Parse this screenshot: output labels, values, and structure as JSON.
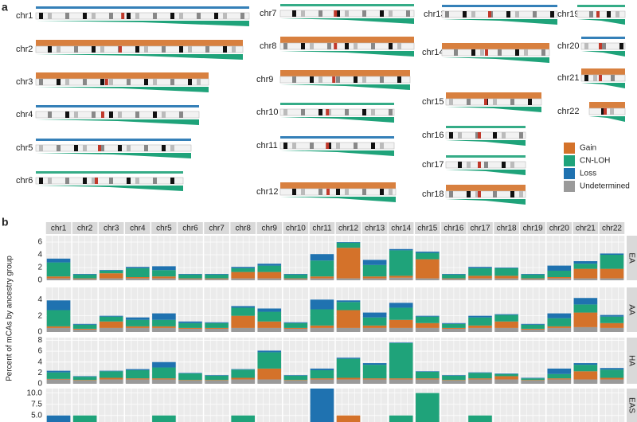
{
  "chart_data": {
    "type": "facet-area",
    "legend": [
      {
        "name": "Gain",
        "color": "#d4722a"
      },
      {
        "name": "CN-LOH",
        "color": "#1fa37a"
      },
      {
        "name": "Loss",
        "color": "#1f72b0"
      },
      {
        "name": "Undetermined",
        "color": "#9a9a9a"
      }
    ],
    "panel_a": {
      "label": "a",
      "chromosomes": [
        "chr1",
        "chr2",
        "chr3",
        "chr4",
        "chr5",
        "chr6",
        "chr7",
        "chr8",
        "chr9",
        "chr10",
        "chr11",
        "chr12",
        "chr13",
        "chr14",
        "chr15",
        "chr16",
        "chr17",
        "chr18",
        "chr19",
        "chr20",
        "chr21",
        "chr22"
      ]
    },
    "panel_b": {
      "label": "b",
      "ylabel": "Percent of mCAs by ancestry group",
      "columns": [
        "chr1",
        "chr2",
        "chr3",
        "chr4",
        "chr5",
        "chr6",
        "chr7",
        "chr8",
        "chr9",
        "chr10",
        "chr11",
        "chr12",
        "chr13",
        "chr14",
        "chr15",
        "chr16",
        "chr17",
        "chr18",
        "chr19",
        "chr20",
        "chr21",
        "chr22"
      ],
      "rows": [
        {
          "name": "EA",
          "ylim": [
            0,
            7
          ],
          "yticks": [
            0,
            2,
            4,
            6
          ],
          "stack": [
            [
              0.3,
              0.1,
              0.8,
              0.2,
              0.3,
              0.1,
              0.1,
              1.0,
              1.0,
              0.1,
              0.3,
              4.8,
              0.3,
              0.3,
              3.0,
              0.1,
              0.4,
              0.4,
              0.1,
              0.2,
              1.5,
              1.5
            ],
            [
              2.2,
              0.6,
              0.4,
              1.4,
              1.0,
              0.6,
              0.6,
              0.6,
              1.0,
              0.6,
              2.5,
              0.8,
              1.8,
              4.0,
              1.0,
              0.6,
              1.2,
              1.2,
              0.6,
              1.0,
              0.8,
              2.2
            ],
            [
              0.6,
              0.1,
              0.1,
              0.2,
              0.6,
              0.1,
              0.1,
              0.2,
              0.3,
              0.1,
              1.0,
              0.1,
              0.8,
              0.2,
              0.2,
              0.1,
              0.2,
              0.1,
              0.1,
              0.8,
              0.4,
              0.2
            ],
            [
              0.3,
              0.2,
              0.3,
              0.3,
              0.3,
              0.2,
              0.2,
              0.3,
              0.3,
              0.2,
              0.3,
              0.3,
              0.3,
              0.4,
              0.3,
              0.2,
              0.3,
              0.3,
              0.2,
              0.3,
              0.3,
              0.3
            ]
          ]
        },
        {
          "name": "AA",
          "ylim": [
            0,
            5.5
          ],
          "yticks": [
            0,
            2,
            4
          ],
          "stack": [
            [
              0.2,
              0.1,
              0.8,
              0.2,
              0.2,
              0.1,
              0.1,
              1.5,
              0.8,
              0.1,
              0.3,
              2.2,
              0.3,
              1.0,
              0.6,
              0.1,
              0.3,
              0.8,
              0.1,
              0.2,
              1.8,
              0.6
            ],
            [
              2.0,
              0.5,
              0.6,
              0.8,
              0.8,
              0.6,
              0.6,
              1.0,
              1.2,
              0.6,
              2.0,
              1.0,
              1.0,
              1.5,
              0.8,
              0.5,
              1.0,
              0.8,
              0.5,
              1.0,
              1.0,
              0.8
            ],
            [
              1.2,
              0.1,
              0.1,
              0.3,
              0.8,
              0.2,
              0.1,
              0.2,
              0.4,
              0.1,
              1.2,
              0.2,
              0.6,
              0.6,
              0.1,
              0.1,
              0.2,
              0.1,
              0.1,
              0.6,
              0.8,
              0.2
            ],
            [
              0.5,
              0.3,
              0.5,
              0.5,
              0.5,
              0.4,
              0.4,
              0.5,
              0.5,
              0.4,
              0.5,
              0.5,
              0.5,
              0.5,
              0.5,
              0.4,
              0.5,
              0.5,
              0.3,
              0.5,
              0.6,
              0.5
            ]
          ]
        },
        {
          "name": "HA",
          "ylim": [
            0,
            8.5
          ],
          "yticks": [
            0,
            2,
            4,
            6,
            8
          ],
          "stack": [
            [
              0.1,
              0.1,
              0.3,
              0.2,
              0.2,
              0.1,
              0.1,
              0.3,
              2.0,
              0.1,
              0.2,
              0.3,
              0.2,
              0.2,
              0.2,
              0.1,
              0.2,
              0.6,
              0.1,
              0.2,
              1.5,
              0.3
            ],
            [
              1.2,
              0.6,
              1.2,
              1.5,
              2.0,
              1.2,
              0.8,
              1.5,
              3.0,
              0.8,
              1.5,
              3.5,
              2.5,
              6.5,
              1.2,
              0.8,
              1.0,
              0.4,
              0.3,
              0.8,
              1.2,
              1.5
            ],
            [
              0.3,
              0.1,
              0.1,
              0.2,
              1.0,
              0.1,
              0.1,
              0.1,
              0.3,
              0.1,
              0.3,
              0.2,
              0.3,
              0.1,
              0.1,
              0.1,
              0.1,
              0.1,
              0.1,
              1.0,
              0.3,
              0.3
            ],
            [
              0.8,
              0.6,
              0.8,
              0.8,
              0.8,
              0.6,
              0.6,
              0.8,
              0.8,
              0.6,
              0.8,
              0.8,
              0.8,
              0.8,
              0.8,
              0.6,
              0.8,
              0.8,
              0.6,
              0.8,
              0.8,
              0.8
            ]
          ]
        },
        {
          "name": "EAS",
          "ylim": [
            0,
            11
          ],
          "yticks": [
            {
              "value": 5,
              "label": "5.0"
            },
            {
              "value": 7.5,
              "label": "7.5"
            },
            {
              "value": 10,
              "label": "10.0"
            }
          ],
          "stack": [
            [
              0,
              0,
              0,
              0,
              0,
              0,
              0,
              0,
              0,
              0,
              0,
              5,
              0,
              0,
              0,
              0,
              0,
              0,
              0,
              0,
              0,
              0
            ],
            [
              0,
              5,
              0,
              0,
              5,
              0,
              0,
              5,
              0,
              0,
              0,
              0,
              0,
              5,
              10,
              0,
              5,
              0,
              0,
              0,
              0,
              0
            ],
            [
              5,
              0,
              0,
              0,
              0,
              0,
              0,
              0,
              0,
              0,
              11,
              0,
              0,
              0,
              0,
              0,
              0,
              0,
              0,
              0,
              0,
              0
            ],
            [
              0,
              0,
              0,
              0,
              0,
              0,
              0,
              0,
              0,
              0,
              0,
              0,
              0,
              0,
              0,
              0,
              0,
              0,
              0,
              0,
              0,
              0
            ]
          ]
        }
      ]
    }
  }
}
